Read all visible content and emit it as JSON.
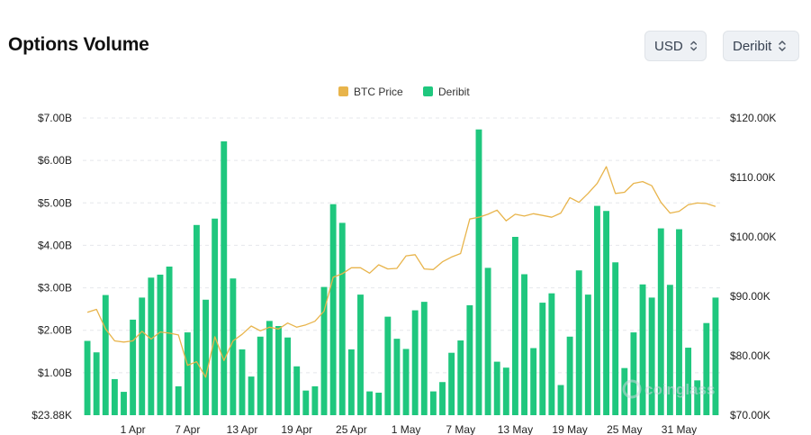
{
  "header": {
    "title": "Options Volume",
    "currency_select": "USD",
    "exchange_select": "Deribit"
  },
  "watermark": "coinglass",
  "colors": {
    "bar": "#1fc77e",
    "price_line": "#e8b44b",
    "grid": "#e5e7eb"
  },
  "chart_data": {
    "type": "bar",
    "legend": [
      {
        "name": "BTC Price",
        "color": "#e8b44b"
      },
      {
        "name": "Deribit",
        "color": "#1fc77e"
      }
    ],
    "legend_position": "top-center",
    "x_tick_labels": [
      "1 Apr",
      "7 Apr",
      "13 Apr",
      "19 Apr",
      "25 Apr",
      "1 May",
      "7 May",
      "13 May",
      "19 May",
      "25 May",
      "31 May"
    ],
    "x_tick_indices": [
      5,
      11,
      17,
      23,
      29,
      35,
      41,
      47,
      53,
      59,
      65
    ],
    "y_left_ticks": [
      "$23.88K",
      "$1.00B",
      "$2.00B",
      "$3.00B",
      "$4.00B",
      "$5.00B",
      "$6.00B",
      "$7.00B"
    ],
    "y_left_values": [
      0,
      1,
      2,
      3,
      4,
      5,
      6,
      7
    ],
    "y_left_range": [
      0,
      7
    ],
    "y_left_unit": "B",
    "y_right_ticks": [
      "$70.00K",
      "$80.00K",
      "$90.00K",
      "$100.00K",
      "$110.00K",
      "$120.00K"
    ],
    "y_right_values": [
      70000,
      80000,
      90000,
      100000,
      110000,
      120000
    ],
    "y_right_range": [
      70000,
      120000
    ],
    "grid": "horizontal dashed",
    "series": [
      {
        "name": "Deribit",
        "type": "bar",
        "axis": "left",
        "values": [
          1.75,
          1.48,
          2.83,
          0.85,
          0.55,
          2.25,
          2.77,
          3.24,
          3.31,
          3.5,
          0.68,
          1.95,
          4.48,
          2.72,
          4.63,
          6.45,
          3.22,
          1.55,
          0.91,
          1.85,
          2.22,
          2.1,
          1.83,
          1.15,
          0.58,
          0.68,
          3.02,
          4.97,
          4.53,
          1.55,
          2.84,
          0.56,
          0.53,
          2.32,
          1.8,
          1.56,
          2.47,
          2.67,
          0.56,
          0.78,
          1.47,
          1.76,
          2.59,
          6.73,
          3.47,
          1.26,
          1.12,
          4.2,
          3.32,
          1.58,
          2.65,
          2.87,
          0.71,
          1.85,
          3.41,
          2.84,
          4.93,
          4.81,
          3.6,
          1.11,
          1.95,
          3.08,
          2.77,
          4.4,
          3.07,
          4.38,
          1.59,
          0.82,
          2.17,
          2.77
        ]
      },
      {
        "name": "BTC Price",
        "type": "line",
        "axis": "right",
        "values": [
          87300,
          87800,
          84500,
          82500,
          82300,
          82500,
          84100,
          82800,
          84000,
          83800,
          83500,
          78400,
          79000,
          76400,
          83200,
          79200,
          82500,
          83600,
          85000,
          84200,
          84800,
          84500,
          85500,
          84800,
          85200,
          85800,
          87500,
          93200,
          93800,
          94800,
          94800,
          93900,
          95300,
          94600,
          94700,
          96800,
          97000,
          94600,
          94500,
          95800,
          96600,
          97200,
          103000,
          103300,
          103800,
          104500,
          102700,
          103800,
          103500,
          103900,
          103600,
          103300,
          104000,
          106600,
          105800,
          107300,
          109000,
          111800,
          107300,
          107500,
          109000,
          109300,
          108600,
          105800,
          104000,
          104300,
          105400,
          105700,
          105600,
          105100
        ]
      }
    ]
  }
}
